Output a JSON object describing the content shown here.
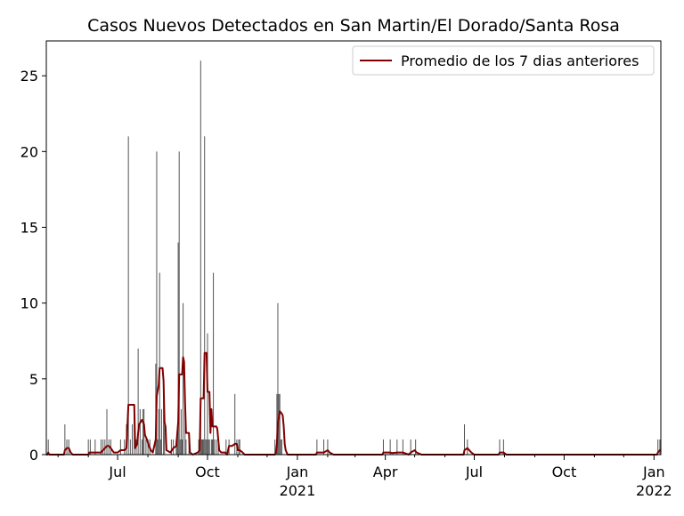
{
  "chart_data": {
    "type": "bar",
    "title": "Casos Nuevos Detectados en San Martin/El Dorado/Santa Rosa",
    "xlabel": "",
    "ylabel": "",
    "ylim": [
      0,
      27.3
    ],
    "xlim": [
      "2020-04-19",
      "2022-01-08"
    ],
    "yticks": [
      0,
      5,
      10,
      15,
      20,
      25
    ],
    "xticks": [
      {
        "date": "2020-07-01",
        "label": "Jul",
        "sublabel": ""
      },
      {
        "date": "2020-10-01",
        "label": "Oct",
        "sublabel": ""
      },
      {
        "date": "2021-01-01",
        "label": "Jan",
        "sublabel": "2021"
      },
      {
        "date": "2021-04-01",
        "label": "Apr",
        "sublabel": ""
      },
      {
        "date": "2021-07-01",
        "label": "Jul",
        "sublabel": ""
      },
      {
        "date": "2021-10-01",
        "label": "Oct",
        "sublabel": ""
      },
      {
        "date": "2022-01-01",
        "label": "Jan",
        "sublabel": "2022"
      }
    ],
    "legend": {
      "position": "top-right",
      "entries": [
        "Promedio de los 7 dias anteriores"
      ]
    },
    "colors": {
      "bars": "#555555",
      "average": "#800000"
    },
    "grid": false,
    "daily_cases": [
      [
        "2020-04-21",
        1
      ],
      [
        "2020-05-08",
        2
      ],
      [
        "2020-05-10",
        1
      ],
      [
        "2020-05-12",
        1
      ],
      [
        "2020-06-01",
        1
      ],
      [
        "2020-06-03",
        1
      ],
      [
        "2020-06-08",
        1
      ],
      [
        "2020-06-14",
        1
      ],
      [
        "2020-06-16",
        1
      ],
      [
        "2020-06-18",
        1
      ],
      [
        "2020-06-20",
        3
      ],
      [
        "2020-06-22",
        1
      ],
      [
        "2020-06-24",
        1
      ],
      [
        "2020-07-04",
        1
      ],
      [
        "2020-07-08",
        1
      ],
      [
        "2020-07-10",
        2
      ],
      [
        "2020-07-12",
        21
      ],
      [
        "2020-07-14",
        1
      ],
      [
        "2020-07-16",
        2
      ],
      [
        "2020-07-18",
        3
      ],
      [
        "2020-07-20",
        1
      ],
      [
        "2020-07-22",
        7
      ],
      [
        "2020-07-24",
        3
      ],
      [
        "2020-07-26",
        1
      ],
      [
        "2020-07-27",
        3
      ],
      [
        "2020-07-28",
        3
      ],
      [
        "2020-07-30",
        1
      ],
      [
        "2020-08-01",
        1
      ],
      [
        "2020-08-03",
        1
      ],
      [
        "2020-08-09",
        6
      ],
      [
        "2020-08-10",
        20
      ],
      [
        "2020-08-11",
        1
      ],
      [
        "2020-08-12",
        3
      ],
      [
        "2020-08-13",
        12
      ],
      [
        "2020-08-14",
        1
      ],
      [
        "2020-08-15",
        3
      ],
      [
        "2020-08-17",
        4
      ],
      [
        "2020-08-18",
        2
      ],
      [
        "2020-08-25",
        1
      ],
      [
        "2020-08-27",
        1
      ],
      [
        "2020-08-30",
        1
      ],
      [
        "2020-08-31",
        1
      ],
      [
        "2020-09-01",
        14
      ],
      [
        "2020-09-02",
        20
      ],
      [
        "2020-09-03",
        1
      ],
      [
        "2020-09-04",
        3
      ],
      [
        "2020-09-05",
        1
      ],
      [
        "2020-09-06",
        10
      ],
      [
        "2020-09-08",
        3
      ],
      [
        "2020-09-09",
        1
      ],
      [
        "2020-09-12",
        1
      ],
      [
        "2020-09-22",
        1
      ],
      [
        "2020-09-23",
        1
      ],
      [
        "2020-09-24",
        26
      ],
      [
        "2020-09-25",
        1
      ],
      [
        "2020-09-26",
        1
      ],
      [
        "2020-09-27",
        1
      ],
      [
        "2020-09-28",
        21
      ],
      [
        "2020-09-29",
        1
      ],
      [
        "2020-09-30",
        1
      ],
      [
        "2020-10-01",
        8
      ],
      [
        "2020-10-02",
        1
      ],
      [
        "2020-10-03",
        1
      ],
      [
        "2020-10-05",
        1
      ],
      [
        "2020-10-06",
        1
      ],
      [
        "2020-10-07",
        12
      ],
      [
        "2020-10-08",
        1
      ],
      [
        "2020-10-10",
        1
      ],
      [
        "2020-10-12",
        1
      ],
      [
        "2020-10-20",
        1
      ],
      [
        "2020-10-23",
        1
      ],
      [
        "2020-10-29",
        4
      ],
      [
        "2020-10-31",
        1
      ],
      [
        "2020-11-02",
        1
      ],
      [
        "2020-11-03",
        1
      ],
      [
        "2020-12-09",
        1
      ],
      [
        "2020-12-11",
        4
      ],
      [
        "2020-12-12",
        10
      ],
      [
        "2020-12-13",
        4
      ],
      [
        "2020-12-14",
        4
      ],
      [
        "2020-12-15",
        1
      ],
      [
        "2020-12-16",
        1
      ],
      [
        "2021-01-21",
        1
      ],
      [
        "2021-01-28",
        1
      ],
      [
        "2021-02-01",
        1
      ],
      [
        "2021-03-30",
        1
      ],
      [
        "2021-04-06",
        1
      ],
      [
        "2021-04-13",
        1
      ],
      [
        "2021-04-19",
        1
      ],
      [
        "2021-04-27",
        1
      ],
      [
        "2021-05-02",
        1
      ],
      [
        "2021-06-21",
        2
      ],
      [
        "2021-06-24",
        1
      ],
      [
        "2021-07-27",
        1
      ],
      [
        "2021-07-31",
        1
      ],
      [
        "2022-01-05",
        1
      ],
      [
        "2022-01-07",
        1
      ]
    ],
    "average_series": {
      "name": "Promedio de los 7 dias anteriores",
      "points": [
        [
          "2020-04-19",
          0.0
        ],
        [
          "2020-04-20",
          0.0
        ],
        [
          "2020-04-21",
          0.14
        ],
        [
          "2020-04-22",
          0.0
        ],
        [
          "2020-05-07",
          0.0
        ],
        [
          "2020-05-08",
          0.29
        ],
        [
          "2020-05-10",
          0.43
        ],
        [
          "2020-05-12",
          0.43
        ],
        [
          "2020-05-14",
          0.14
        ],
        [
          "2020-05-16",
          0.0
        ],
        [
          "2020-06-01",
          0.0
        ],
        [
          "2020-06-02",
          0.14
        ],
        [
          "2020-06-10",
          0.14
        ],
        [
          "2020-06-14",
          0.14
        ],
        [
          "2020-06-16",
          0.29
        ],
        [
          "2020-06-18",
          0.43
        ],
        [
          "2020-06-20",
          0.57
        ],
        [
          "2020-06-22",
          0.57
        ],
        [
          "2020-06-24",
          0.43
        ],
        [
          "2020-06-27",
          0.14
        ],
        [
          "2020-07-01",
          0.14
        ],
        [
          "2020-07-04",
          0.29
        ],
        [
          "2020-07-08",
          0.29
        ],
        [
          "2020-07-10",
          0.43
        ],
        [
          "2020-07-12",
          3.29
        ],
        [
          "2020-07-18",
          3.29
        ],
        [
          "2020-07-19",
          0.43
        ],
        [
          "2020-07-21",
          0.71
        ],
        [
          "2020-07-22",
          1.43
        ],
        [
          "2020-07-23",
          2.0
        ],
        [
          "2020-07-26",
          2.29
        ],
        [
          "2020-07-28",
          2.0
        ],
        [
          "2020-07-29",
          1.29
        ],
        [
          "2020-07-31",
          1.0
        ],
        [
          "2020-08-02",
          0.57
        ],
        [
          "2020-08-04",
          0.29
        ],
        [
          "2020-08-06",
          0.14
        ],
        [
          "2020-08-07",
          0.43
        ],
        [
          "2020-08-09",
          1.0
        ],
        [
          "2020-08-10",
          3.86
        ],
        [
          "2020-08-12",
          4.57
        ],
        [
          "2020-08-13",
          5.71
        ],
        [
          "2020-08-16",
          5.71
        ],
        [
          "2020-08-17",
          4.86
        ],
        [
          "2020-08-18",
          2.14
        ],
        [
          "2020-08-19",
          1.86
        ],
        [
          "2020-08-20",
          0.29
        ],
        [
          "2020-08-24",
          0.14
        ],
        [
          "2020-08-27",
          0.43
        ],
        [
          "2020-08-30",
          0.57
        ],
        [
          "2020-09-01",
          2.14
        ],
        [
          "2020-09-02",
          5.29
        ],
        [
          "2020-09-05",
          5.29
        ],
        [
          "2020-09-06",
          6.43
        ],
        [
          "2020-09-07",
          6.14
        ],
        [
          "2020-09-08",
          3.43
        ],
        [
          "2020-09-09",
          1.43
        ],
        [
          "2020-09-12",
          1.43
        ],
        [
          "2020-09-13",
          0.14
        ],
        [
          "2020-09-16",
          0.0
        ],
        [
          "2020-09-21",
          0.14
        ],
        [
          "2020-09-23",
          0.29
        ],
        [
          "2020-09-24",
          3.71
        ],
        [
          "2020-09-27",
          3.71
        ],
        [
          "2020-09-28",
          6.71
        ],
        [
          "2020-09-30",
          6.71
        ],
        [
          "2020-10-01",
          4.14
        ],
        [
          "2020-10-03",
          4.14
        ],
        [
          "2020-10-04",
          1.43
        ],
        [
          "2020-10-05",
          3.0
        ],
        [
          "2020-10-06",
          1.86
        ],
        [
          "2020-10-08",
          1.86
        ],
        [
          "2020-10-10",
          1.86
        ],
        [
          "2020-10-11",
          1.71
        ],
        [
          "2020-10-13",
          0.29
        ],
        [
          "2020-10-15",
          0.14
        ],
        [
          "2020-10-19",
          0.14
        ],
        [
          "2020-10-21",
          0.0
        ],
        [
          "2020-10-23",
          0.57
        ],
        [
          "2020-10-26",
          0.57
        ],
        [
          "2020-10-29",
          0.71
        ],
        [
          "2020-10-31",
          0.71
        ],
        [
          "2020-11-01",
          0.29
        ],
        [
          "2020-11-03",
          0.29
        ],
        [
          "2020-11-06",
          0.14
        ],
        [
          "2020-11-08",
          0.0
        ],
        [
          "2020-12-09",
          0.0
        ],
        [
          "2020-12-10",
          0.14
        ],
        [
          "2020-12-11",
          0.71
        ],
        [
          "2020-12-12",
          2.14
        ],
        [
          "2020-12-13",
          2.43
        ],
        [
          "2020-12-14",
          2.86
        ],
        [
          "2020-12-16",
          2.71
        ],
        [
          "2020-12-17",
          2.57
        ],
        [
          "2020-12-18",
          1.86
        ],
        [
          "2020-12-19",
          0.71
        ],
        [
          "2020-12-20",
          0.29
        ],
        [
          "2020-12-22",
          0.0
        ],
        [
          "2021-01-20",
          0.0
        ],
        [
          "2021-01-21",
          0.14
        ],
        [
          "2021-01-28",
          0.14
        ],
        [
          "2021-02-01",
          0.29
        ],
        [
          "2021-02-03",
          0.14
        ],
        [
          "2021-02-07",
          0.0
        ],
        [
          "2021-03-29",
          0.0
        ],
        [
          "2021-03-30",
          0.14
        ],
        [
          "2021-04-06",
          0.14
        ],
        [
          "2021-04-08",
          0.1
        ],
        [
          "2021-04-13",
          0.14
        ],
        [
          "2021-04-19",
          0.14
        ],
        [
          "2021-04-25",
          0.0
        ],
        [
          "2021-04-27",
          0.14
        ],
        [
          "2021-05-01",
          0.29
        ],
        [
          "2021-05-03",
          0.14
        ],
        [
          "2021-05-08",
          0.0
        ],
        [
          "2021-06-20",
          0.0
        ],
        [
          "2021-06-21",
          0.29
        ],
        [
          "2021-06-24",
          0.43
        ],
        [
          "2021-06-28",
          0.14
        ],
        [
          "2021-07-01",
          0.0
        ],
        [
          "2021-07-26",
          0.0
        ],
        [
          "2021-07-27",
          0.14
        ],
        [
          "2021-07-31",
          0.14
        ],
        [
          "2021-08-03",
          0.0
        ],
        [
          "2022-01-04",
          0.0
        ],
        [
          "2022-01-05",
          0.14
        ],
        [
          "2022-01-07",
          0.29
        ],
        [
          "2022-01-08",
          0.29
        ]
      ]
    }
  }
}
